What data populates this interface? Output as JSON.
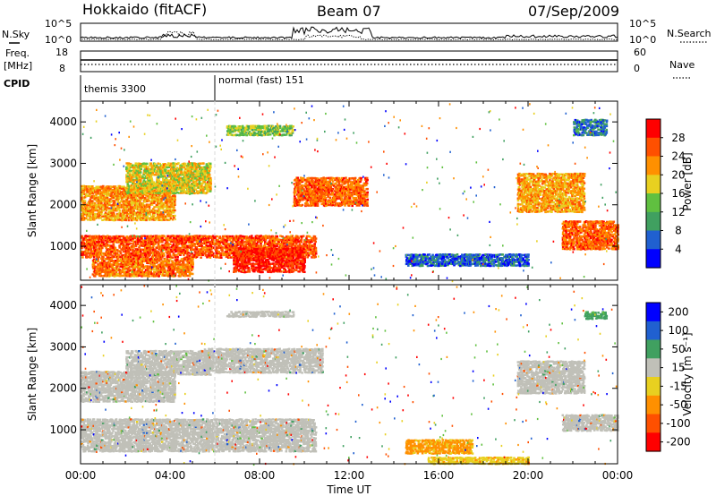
{
  "header": {
    "station": "Hokkaido (fitACF)",
    "beam": "Beam 07",
    "date": "07/Sep/2009"
  },
  "noise_panel": {
    "left_label": "N.Sky",
    "right_label": "N.Search",
    "left_ticks": [
      "10^5",
      "10^0"
    ],
    "right_ticks": [
      "10^5",
      "10^0"
    ]
  },
  "freq_panel": {
    "left_label_line1": "Freq.",
    "left_label_line2": "[MHz]",
    "right_label": "Nave",
    "left_ticks": [
      "18",
      "8"
    ],
    "right_ticks": [
      "60",
      "0"
    ]
  },
  "cpid": {
    "label": "CPID",
    "segments": [
      {
        "name": "themis 3300",
        "start_hour": 0
      },
      {
        "name": "normal (fast) 151",
        "start_hour": 6
      }
    ]
  },
  "colors": {
    "scale": [
      "#0000ff",
      "#2060d0",
      "#40a060",
      "#60c040",
      "#e8d020",
      "#ff9000",
      "#ff5000",
      "#ff0000"
    ],
    "ground_scatter": "#c0c0b8"
  },
  "chart_data": [
    {
      "type": "heatmap",
      "title": "",
      "xlabel": "",
      "ylabel": "Slant Range [km]",
      "xlim_hours": [
        0,
        24
      ],
      "ylim": [
        180,
        4500
      ],
      "yticks": [
        1000,
        2000,
        3000,
        4000
      ],
      "colorbar": {
        "label": "Power [dB]",
        "ticks": [
          "4",
          "8",
          "12",
          "16",
          "20",
          "24",
          "28"
        ],
        "min": 0,
        "max": 32
      },
      "regions": [
        {
          "t0": 0.0,
          "t1": 4.2,
          "r0": 1650,
          "r1": 2500,
          "v": 22
        },
        {
          "t0": 2.0,
          "t1": 5.8,
          "r0": 2300,
          "r1": 3050,
          "v": 18
        },
        {
          "t0": 0.0,
          "t1": 10.5,
          "r0": 750,
          "r1": 1300,
          "v": 26
        },
        {
          "t0": 0.5,
          "t1": 5.0,
          "r0": 300,
          "r1": 750,
          "v": 24
        },
        {
          "t0": 6.8,
          "t1": 10.0,
          "r0": 400,
          "r1": 1000,
          "v": 29
        },
        {
          "t0": 6.5,
          "t1": 9.5,
          "r0": 3700,
          "r1": 3950,
          "v": 14
        },
        {
          "t0": 9.5,
          "t1": 12.8,
          "r0": 2000,
          "r1": 2700,
          "v": 25
        },
        {
          "t0": 14.5,
          "t1": 20.0,
          "r0": 550,
          "r1": 850,
          "v": 6
        },
        {
          "t0": 19.5,
          "t1": 22.5,
          "r0": 1850,
          "r1": 2800,
          "v": 21
        },
        {
          "t0": 21.5,
          "t1": 24.0,
          "r0": 950,
          "r1": 1650,
          "v": 25
        },
        {
          "t0": 22.0,
          "t1": 23.5,
          "r0": 3700,
          "r1": 4100,
          "v": 8
        }
      ]
    },
    {
      "type": "heatmap",
      "title": "",
      "xlabel": "Time UT",
      "ylabel": "Slant Range [km]",
      "xlim_hours": [
        0,
        24
      ],
      "xticks": [
        "00:00",
        "04:00",
        "08:00",
        "12:00",
        "16:00",
        "20:00",
        "00:00"
      ],
      "ylim": [
        180,
        4500
      ],
      "yticks": [
        1000,
        2000,
        3000,
        4000
      ],
      "colorbar": {
        "label": "Velocity [m s⁻¹]",
        "ticks": [
          "200",
          "100",
          "50",
          "15",
          "-15",
          "-50",
          "-100",
          "-200"
        ],
        "min": -250,
        "max": 250
      },
      "regions": [
        {
          "t0": 0.0,
          "t1": 4.2,
          "r0": 1700,
          "r1": 2450,
          "v": 0,
          "gs": true
        },
        {
          "t0": 2.0,
          "t1": 5.8,
          "r0": 2350,
          "r1": 2950,
          "v": 0,
          "gs": true
        },
        {
          "t0": 0.0,
          "t1": 10.5,
          "r0": 500,
          "r1": 1300,
          "v": 0,
          "gs": true
        },
        {
          "t0": 5.5,
          "t1": 10.8,
          "r0": 2400,
          "r1": 3000,
          "v": 0,
          "gs": true
        },
        {
          "t0": 6.5,
          "t1": 9.5,
          "r0": 3750,
          "r1": 3900,
          "v": 0,
          "gs": true
        },
        {
          "t0": 14.5,
          "t1": 17.5,
          "r0": 450,
          "r1": 800,
          "v": -80
        },
        {
          "t0": 15.5,
          "t1": 20.0,
          "r0": 200,
          "r1": 380,
          "v": -40
        },
        {
          "t0": 19.5,
          "t1": 22.5,
          "r0": 1900,
          "r1": 2700,
          "v": 0,
          "gs": true
        },
        {
          "t0": 21.5,
          "t1": 24.0,
          "r0": 1000,
          "r1": 1400,
          "v": 0,
          "gs": true
        },
        {
          "t0": 22.5,
          "t1": 23.5,
          "r0": 3700,
          "r1": 3900,
          "v": 80
        }
      ]
    }
  ]
}
